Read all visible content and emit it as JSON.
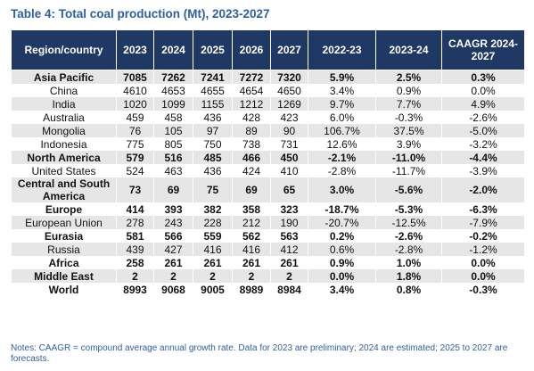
{
  "title": "Table 4: Total coal production (Mt), 2023-2027",
  "table": {
    "header": [
      "Region/country",
      "2023",
      "2024",
      "2025",
      "2026",
      "2027",
      "2022-23",
      "2023-24",
      "CAAGR 2024-2027"
    ],
    "rows": [
      {
        "bold": true,
        "cells": [
          "Asia Pacific",
          "7085",
          "7262",
          "7241",
          "7272",
          "7320",
          "5.9%",
          "2.5%",
          "0.3%"
        ]
      },
      {
        "bold": false,
        "cells": [
          "China",
          "4610",
          "4653",
          "4655",
          "4654",
          "4650",
          "3.4%",
          "0.9%",
          "0.0%"
        ]
      },
      {
        "bold": false,
        "cells": [
          "India",
          "1020",
          "1099",
          "1155",
          "1212",
          "1269",
          "9.7%",
          "7.7%",
          "4.9%"
        ]
      },
      {
        "bold": false,
        "cells": [
          "Australia",
          "459",
          "458",
          "436",
          "428",
          "423",
          "6.0%",
          "-0.3%",
          "-2.6%"
        ]
      },
      {
        "bold": false,
        "cells": [
          "Mongolia",
          "76",
          "105",
          "97",
          "89",
          "90",
          "106.7%",
          "37.5%",
          "-5.0%"
        ]
      },
      {
        "bold": false,
        "cells": [
          "Indonesia",
          "775",
          "805",
          "750",
          "738",
          "731",
          "12.6%",
          "3.9%",
          "-3.2%"
        ]
      },
      {
        "bold": true,
        "cells": [
          "North America",
          "579",
          "516",
          "485",
          "466",
          "450",
          "-2.1%",
          "-11.0%",
          "-4.4%"
        ]
      },
      {
        "bold": false,
        "cells": [
          "United States",
          "524",
          "463",
          "436",
          "424",
          "410",
          "-2.8%",
          "-11.7%",
          "-3.9%"
        ]
      },
      {
        "bold": true,
        "cells": [
          "Central and South America",
          "73",
          "69",
          "75",
          "69",
          "65",
          "3.0%",
          "-5.6%",
          "-2.0%"
        ]
      },
      {
        "bold": true,
        "cells": [
          "Europe",
          "414",
          "393",
          "382",
          "358",
          "323",
          "-18.7%",
          "-5.3%",
          "-6.3%"
        ]
      },
      {
        "bold": false,
        "cells": [
          "European Union",
          "278",
          "243",
          "228",
          "212",
          "190",
          "-20.7%",
          "-12.5%",
          "-7.9%"
        ]
      },
      {
        "bold": true,
        "cells": [
          "Eurasia",
          "581",
          "566",
          "559",
          "562",
          "563",
          "0.2%",
          "-2.6%",
          "-0.2%"
        ]
      },
      {
        "bold": false,
        "cells": [
          "Russia",
          "439",
          "427",
          "416",
          "416",
          "412",
          "0.6%",
          "-2.8%",
          "-1.2%"
        ]
      },
      {
        "bold": true,
        "cells": [
          "Africa",
          "258",
          "261",
          "261",
          "261",
          "261",
          "0.9%",
          "1.0%",
          "0.0%"
        ]
      },
      {
        "bold": true,
        "cells": [
          "Middle East",
          "2",
          "2",
          "2",
          "2",
          "2",
          "0.0%",
          "1.8%",
          "0.0%"
        ]
      },
      {
        "bold": true,
        "cells": [
          "World",
          "8993",
          "9068",
          "9005",
          "8989",
          "8984",
          "3.4%",
          "0.8%",
          "-0.3%"
        ]
      }
    ]
  },
  "notes": "Notes: CAAGR = compound average annual growth rate. Data for 2023 are preliminary; 2024 are estimated; 2025 to 2027 are forecasts."
}
